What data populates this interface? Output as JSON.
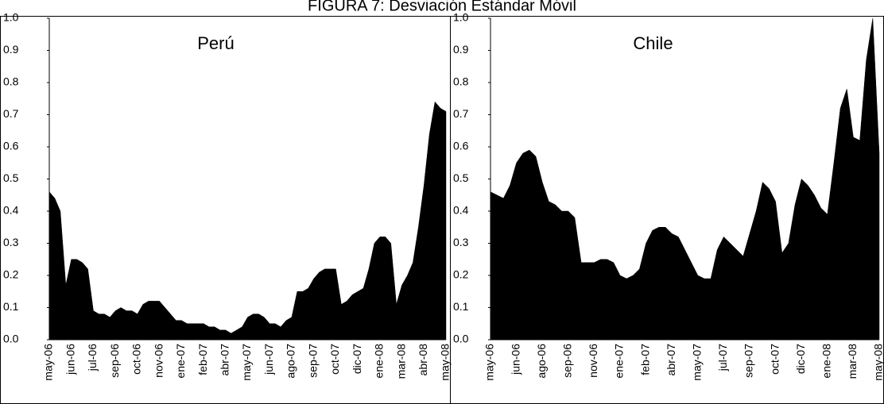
{
  "title": "FIGURA 7: Desviación Estándar Móvil",
  "chart_data": [
    {
      "type": "area",
      "annotation": "Perú",
      "color": "#000000",
      "ylim": [
        0,
        1
      ],
      "yticks": [
        {
          "value": 0,
          "label": "0.0"
        },
        0.1,
        0.2,
        0.3,
        0.4,
        0.5,
        0.6,
        0.7,
        0.8,
        0.9,
        {
          "value": 1,
          "label": "1.0"
        }
      ],
      "categories": [
        "may-06",
        null,
        null,
        null,
        "jun-06",
        null,
        null,
        null,
        "jul-06",
        null,
        null,
        null,
        "sep-06",
        null,
        null,
        null,
        "oct-06",
        null,
        null,
        null,
        "nov-06",
        null,
        null,
        null,
        "ene-07",
        null,
        null,
        null,
        "feb-07",
        null,
        null,
        null,
        "abr-07",
        null,
        null,
        null,
        "may-07",
        null,
        null,
        null,
        "jun-07",
        null,
        null,
        null,
        "ago-07",
        null,
        null,
        null,
        "sep-07",
        null,
        null,
        null,
        "oct-07",
        null,
        null,
        null,
        "dic-07",
        null,
        null,
        null,
        "ene-08",
        null,
        null,
        null,
        "mar-08",
        null,
        null,
        null,
        "abr-08",
        null,
        null,
        null,
        "may-08"
      ],
      "values": [
        0.46,
        0.44,
        0.4,
        0.17,
        0.25,
        0.25,
        0.24,
        0.22,
        0.09,
        0.08,
        0.08,
        0.07,
        0.09,
        0.1,
        0.09,
        0.09,
        0.08,
        0.11,
        0.12,
        0.12,
        0.12,
        0.1,
        0.08,
        0.06,
        0.06,
        0.05,
        0.05,
        0.05,
        0.05,
        0.04,
        0.04,
        0.03,
        0.03,
        0.02,
        0.03,
        0.04,
        0.07,
        0.08,
        0.08,
        0.07,
        0.05,
        0.05,
        0.04,
        0.06,
        0.07,
        0.15,
        0.15,
        0.16,
        0.19,
        0.21,
        0.22,
        0.22,
        0.22,
        0.11,
        0.12,
        0.14,
        0.15,
        0.16,
        0.22,
        0.3,
        0.32,
        0.32,
        0.3,
        0.11,
        0.17,
        0.2,
        0.24,
        0.35,
        0.48,
        0.64,
        0.74,
        0.72,
        0.71
      ]
    },
    {
      "type": "area",
      "annotation": "Chile",
      "color": "#000000",
      "ylim": [
        0,
        1
      ],
      "yticks": [
        {
          "value": 0,
          "label": "0.0"
        },
        0.1,
        0.2,
        0.3,
        0.4,
        0.5,
        0.6,
        0.7,
        0.8,
        0.9,
        {
          "value": 1,
          "label": "1.0"
        }
      ],
      "categories": [
        "may-06",
        null,
        null,
        null,
        "jun-06",
        null,
        null,
        null,
        "ago-06",
        null,
        null,
        null,
        "sep-06",
        null,
        null,
        null,
        "nov-06",
        null,
        null,
        null,
        "ene-07",
        null,
        null,
        null,
        "feb-07",
        null,
        null,
        null,
        "abr-07",
        null,
        null,
        null,
        "may-07",
        null,
        null,
        null,
        "jul-07",
        null,
        null,
        null,
        "sep-07",
        null,
        null,
        null,
        "oct-07",
        null,
        null,
        null,
        "dic-07",
        null,
        null,
        null,
        "ene-08",
        null,
        null,
        null,
        "mar-08",
        null,
        null,
        null,
        "may-08"
      ],
      "values": [
        0.46,
        0.45,
        0.44,
        0.48,
        0.55,
        0.58,
        0.59,
        0.57,
        0.49,
        0.43,
        0.42,
        0.4,
        0.4,
        0.38,
        0.24,
        0.24,
        0.24,
        0.25,
        0.25,
        0.24,
        0.2,
        0.19,
        0.2,
        0.22,
        0.3,
        0.34,
        0.35,
        0.35,
        0.33,
        0.32,
        0.28,
        0.24,
        0.2,
        0.19,
        0.19,
        0.28,
        0.32,
        0.3,
        0.28,
        0.26,
        0.33,
        0.4,
        0.49,
        0.47,
        0.43,
        0.27,
        0.3,
        0.42,
        0.5,
        0.48,
        0.45,
        0.41,
        0.39,
        0.55,
        0.72,
        0.78,
        0.63,
        0.62,
        0.87,
        1.0,
        0.58
      ]
    }
  ]
}
